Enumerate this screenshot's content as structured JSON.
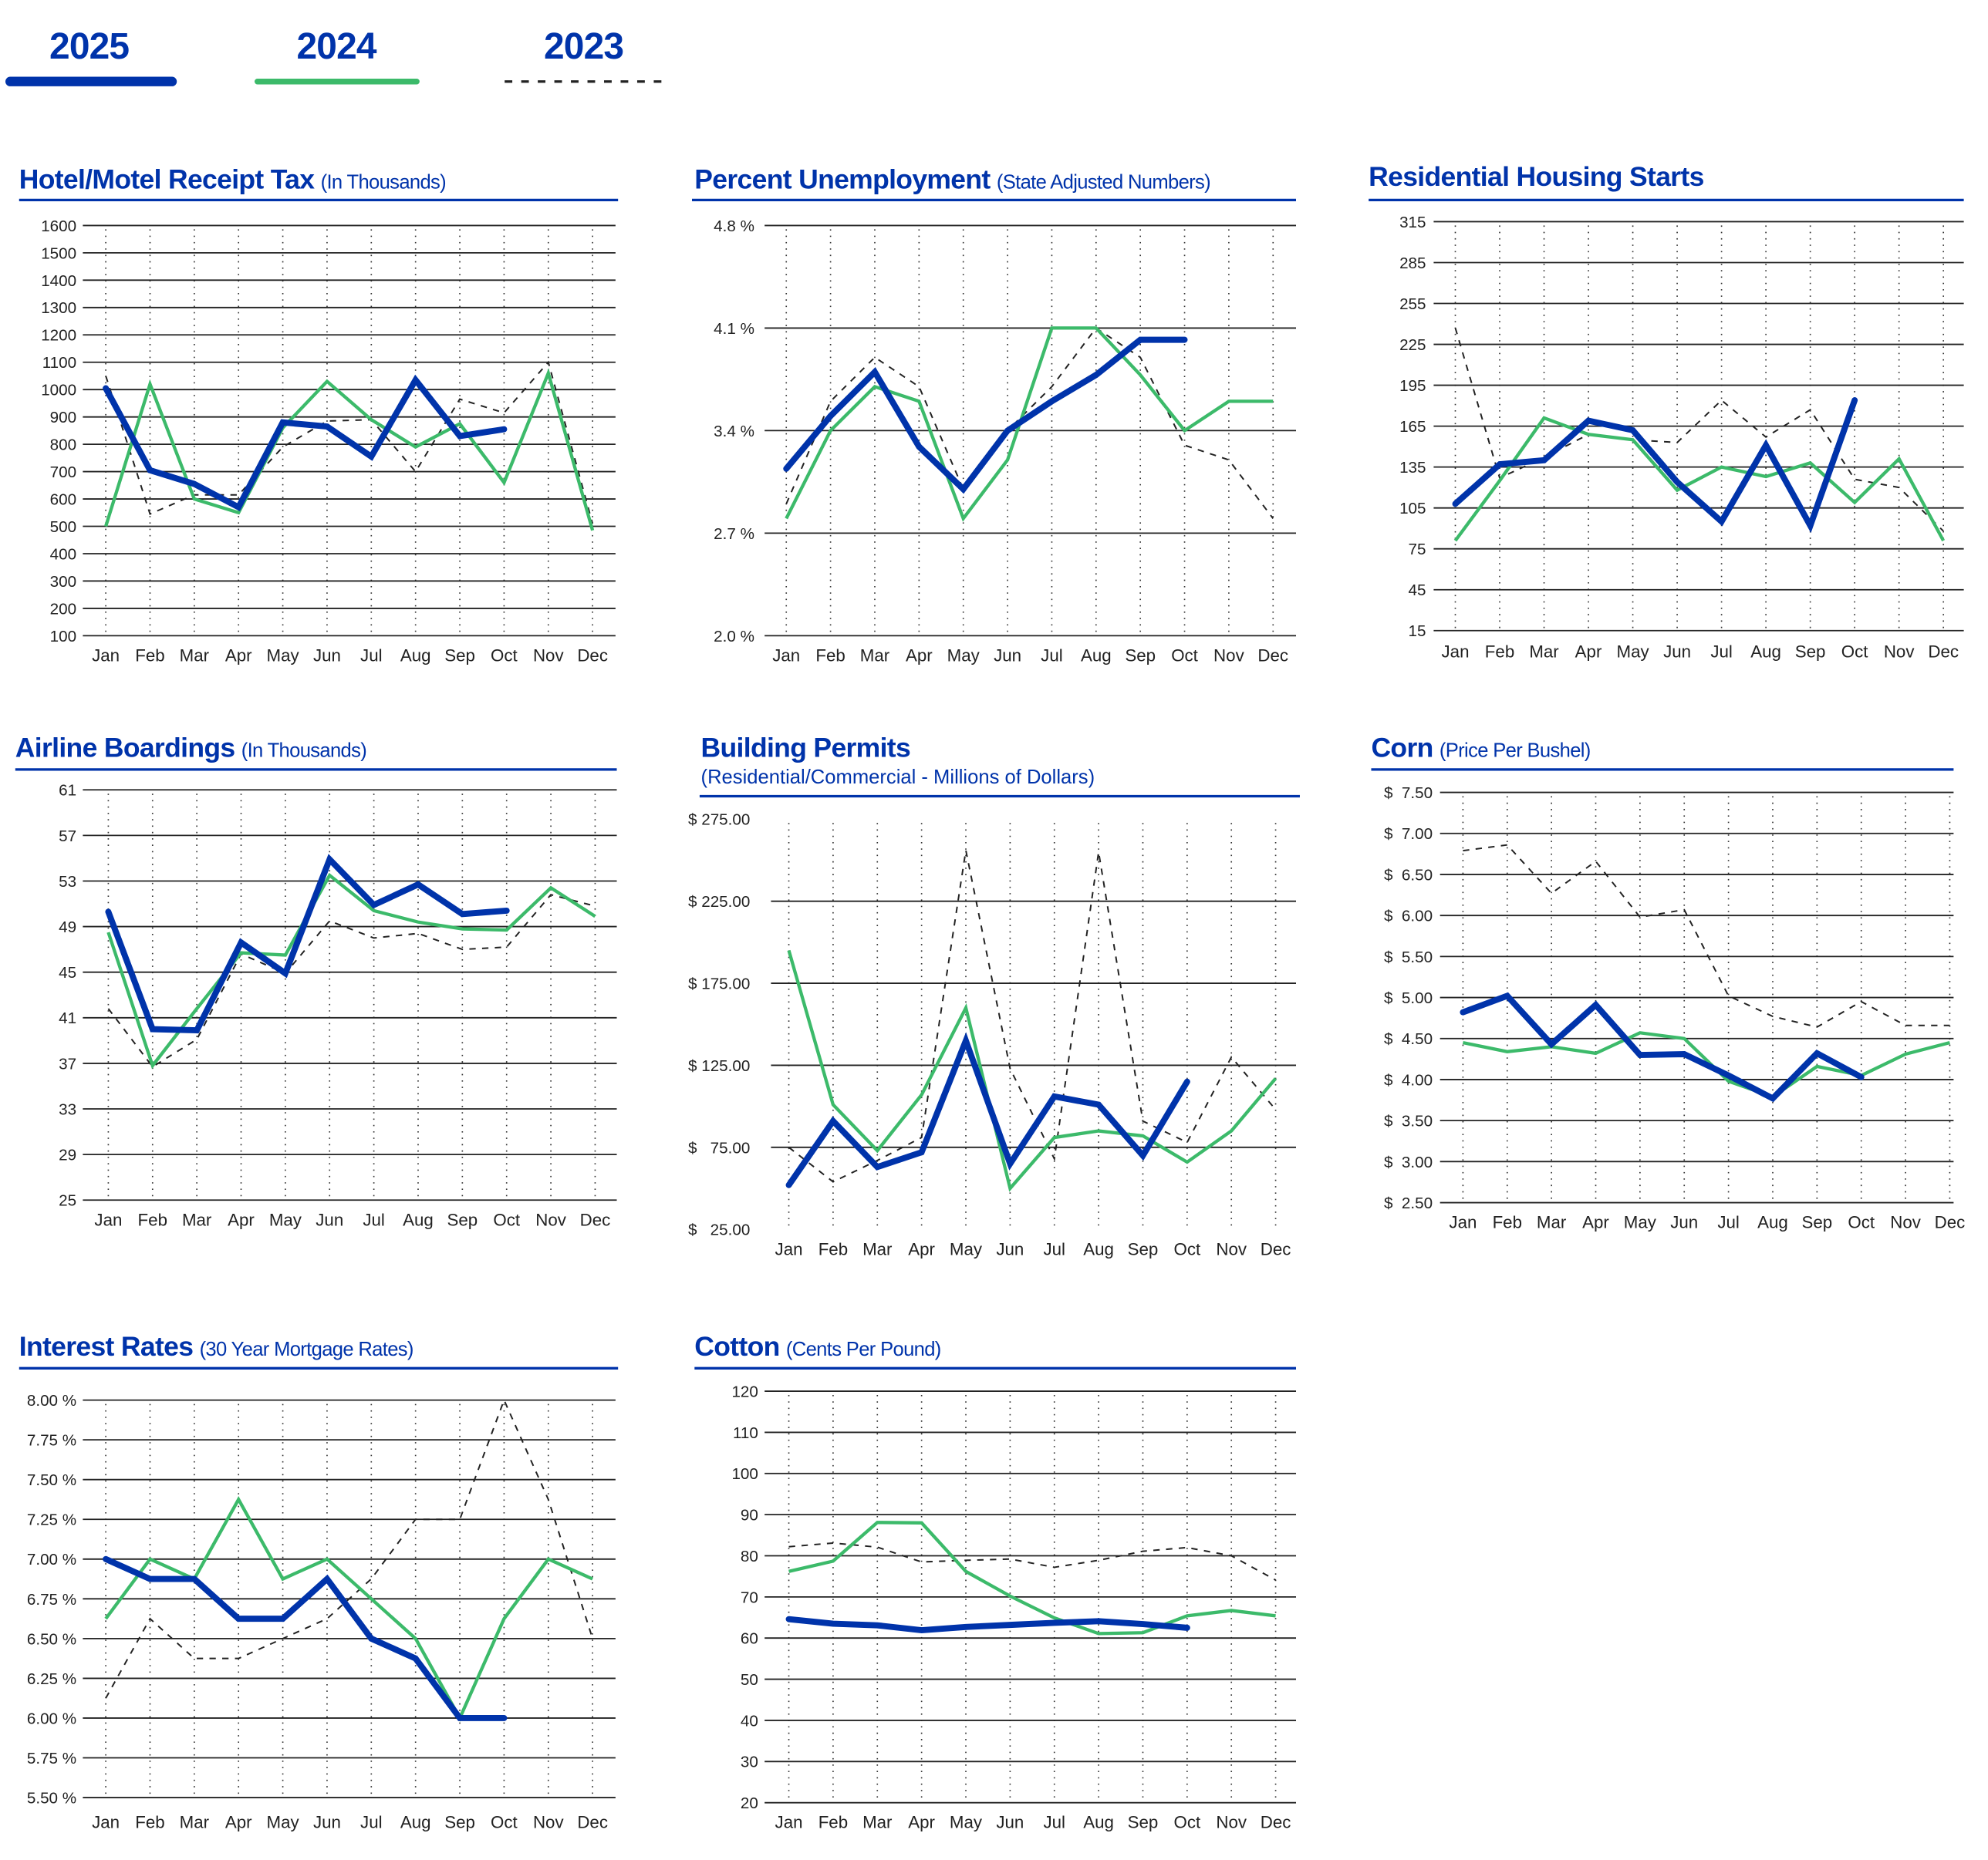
{
  "legend": [
    {
      "year": "2025",
      "color": "#0033aa",
      "style": "solid-thick"
    },
    {
      "year": "2024",
      "color": "#3cba6a",
      "style": "solid"
    },
    {
      "year": "2023",
      "color": "#222222",
      "style": "dashed"
    }
  ],
  "months": [
    "Jan",
    "Feb",
    "Mar",
    "Apr",
    "May",
    "Jun",
    "Jul",
    "Aug",
    "Sep",
    "Oct",
    "Nov",
    "Dec"
  ],
  "chart_data": [
    {
      "id": "hotel",
      "type": "line",
      "title": "Hotel/Motel Receipt Tax",
      "subtitle": "(In Thousands)",
      "ylim": [
        100,
        1600
      ],
      "yticks": [
        1600,
        1500,
        1400,
        1300,
        1200,
        1100,
        1000,
        900,
        800,
        700,
        600,
        500,
        400,
        300,
        200,
        100
      ],
      "ytick_labels": [
        "1600",
        "1500",
        "1400",
        "1300",
        "1200",
        "1100",
        "1000",
        "900",
        "800",
        "700",
        "600",
        "500",
        "400",
        "300",
        "200",
        "100"
      ],
      "gridlines": [
        1600,
        1500,
        1400,
        1300,
        1200,
        1100,
        1000,
        900,
        800,
        700,
        600,
        500,
        400,
        300,
        200,
        100
      ],
      "series": [
        {
          "name": "2025",
          "values": [
            1005,
            705,
            655,
            570,
            880,
            865,
            755,
            1035,
            830,
            855
          ]
        },
        {
          "name": "2024",
          "values": [
            500,
            1020,
            600,
            550,
            860,
            1030,
            890,
            790,
            875,
            660,
            1060,
            485
          ]
        },
        {
          "name": "2023",
          "values": [
            1050,
            545,
            615,
            615,
            790,
            885,
            890,
            700,
            965,
            915,
            1100,
            510
          ]
        }
      ]
    },
    {
      "id": "unemployment",
      "type": "line",
      "title": "Percent Unemployment",
      "subtitle": "(State Adjusted Numbers)",
      "ylim": [
        2.0,
        4.8
      ],
      "yticks": [
        4.8,
        4.1,
        3.4,
        2.7,
        2.0
      ],
      "ytick_labels": [
        "4.8 %",
        "4.1 %",
        "3.4 %",
        "2.7 %",
        "2.0 %"
      ],
      "gridlines": [
        4.8,
        4.1,
        3.4,
        2.7,
        2.0
      ],
      "series": [
        {
          "name": "2025",
          "values": [
            3.14,
            3.5,
            3.8,
            3.29,
            3.0,
            3.4,
            3.6,
            3.78,
            4.02,
            4.02
          ]
        },
        {
          "name": "2024",
          "values": [
            2.8,
            3.4,
            3.7,
            3.6,
            2.8,
            3.2,
            4.1,
            4.1,
            3.78,
            3.4,
            3.6,
            3.6
          ]
        },
        {
          "name": "2023",
          "values": [
            2.9,
            3.6,
            3.9,
            3.7,
            3.0,
            3.4,
            3.7,
            4.1,
            3.9,
            3.3,
            3.2,
            2.8
          ]
        }
      ]
    },
    {
      "id": "housing",
      "type": "line",
      "title": "Residential Housing Starts",
      "subtitle": "",
      "ylim": [
        15,
        315
      ],
      "yticks": [
        315,
        285,
        255,
        225,
        195,
        165,
        135,
        105,
        75,
        45,
        15
      ],
      "ytick_labels": [
        "315",
        "285",
        "255",
        "225",
        "195",
        "165",
        "135",
        "105",
        "75",
        "45",
        "15"
      ],
      "gridlines": [
        315,
        285,
        255,
        225,
        195,
        165,
        135,
        105,
        75,
        45,
        15
      ],
      "series": [
        {
          "name": "2025",
          "values": [
            108,
            137,
            140,
            169,
            162,
            124,
            95,
            151,
            92,
            184
          ]
        },
        {
          "name": "2024",
          "values": [
            81,
            125,
            171,
            159,
            155,
            118,
            135,
            128,
            138,
            109,
            141,
            81
          ]
        },
        {
          "name": "2023",
          "values": [
            237,
            127,
            142,
            159,
            155,
            153,
            184,
            157,
            177,
            126,
            120,
            88
          ]
        }
      ]
    },
    {
      "id": "airline",
      "type": "line",
      "title": "Airline Boardings",
      "subtitle": "(In Thousands)",
      "ylim": [
        25,
        61
      ],
      "yticks": [
        61,
        57,
        53,
        49,
        45,
        41,
        37,
        33,
        29,
        25
      ],
      "ytick_labels": [
        "61",
        "57",
        "53",
        "49",
        "45",
        "41",
        "37",
        "33",
        "29",
        "25"
      ],
      "gridlines": [
        61,
        57,
        53,
        49,
        45,
        41,
        37,
        33,
        29,
        25
      ],
      "series": [
        {
          "name": "2025",
          "values": [
            50.3,
            40.0,
            39.9,
            47.6,
            44.9,
            54.9,
            50.9,
            52.7,
            50.1,
            50.4
          ]
        },
        {
          "name": "2024",
          "values": [
            48.5,
            36.8,
            41.8,
            46.7,
            46.5,
            53.5,
            50.4,
            49.4,
            48.8,
            48.7,
            52.4,
            49.9
          ]
        },
        {
          "name": "2023",
          "values": [
            41.8,
            36.7,
            39.1,
            46.6,
            44.9,
            49.5,
            48.0,
            48.4,
            47.0,
            47.2,
            51.8,
            50.8
          ]
        }
      ]
    },
    {
      "id": "permits",
      "type": "line",
      "title": "Building Permits",
      "subtitle": "(Residential/Commercial - Millions of Dollars)",
      "ylim": [
        25,
        275
      ],
      "yticks": [
        275,
        225,
        175,
        125,
        75,
        25
      ],
      "ytick_labels": [
        "$ 275.00",
        "$ 225.00",
        "$ 175.00",
        "$ 125.00",
        "$   75.00",
        "$   25.00"
      ],
      "gridlines": [
        225,
        175,
        125,
        75
      ],
      "series": [
        {
          "name": "2025",
          "values": [
            52,
            91,
            63,
            72,
            140,
            65,
            106,
            101,
            70,
            115
          ]
        },
        {
          "name": "2024",
          "values": [
            195,
            101,
            73,
            107,
            160,
            50,
            81,
            85,
            82,
            66,
            85,
            117
          ]
        },
        {
          "name": "2023",
          "values": [
            75,
            54,
            67,
            81,
            256,
            123,
            68,
            255,
            91,
            78,
            130,
            98
          ]
        }
      ]
    },
    {
      "id": "corn",
      "type": "line",
      "title": "Corn",
      "subtitle": "(Price Per Bushel)",
      "ylim": [
        2.5,
        7.5
      ],
      "yticks": [
        7.5,
        7.0,
        6.5,
        6.0,
        5.5,
        5.0,
        4.5,
        4.0,
        3.5,
        3.0,
        2.5
      ],
      "ytick_labels": [
        "$  7.50",
        "$  7.00",
        "$  6.50",
        "$  6.00",
        "$  5.50",
        "$  5.00",
        "$  4.50",
        "$  4.00",
        "$  3.50",
        "$  3.00",
        "$  2.50"
      ],
      "gridlines": [
        7.5,
        7.0,
        6.5,
        6.0,
        5.5,
        5.0,
        4.5,
        4.0,
        3.5,
        3.0,
        2.5
      ],
      "series": [
        {
          "name": "2025",
          "values": [
            4.82,
            5.02,
            4.43,
            4.91,
            4.3,
            4.31,
            4.05,
            3.77,
            4.32,
            4.03
          ]
        },
        {
          "name": "2024",
          "values": [
            4.45,
            4.34,
            4.4,
            4.32,
            4.57,
            4.5,
            3.98,
            3.79,
            4.16,
            4.05,
            4.31,
            4.45
          ]
        },
        {
          "name": "2023",
          "values": [
            6.79,
            6.86,
            6.27,
            6.66,
            5.98,
            6.07,
            5.02,
            4.77,
            4.64,
            4.95,
            4.66,
            4.66
          ]
        }
      ]
    },
    {
      "id": "interest",
      "type": "line",
      "title": "Interest Rates",
      "subtitle": "(30 Year Mortgage Rates)",
      "ylim": [
        5.5,
        8.0
      ],
      "yticks": [
        8.0,
        7.75,
        7.5,
        7.25,
        7.0,
        6.75,
        6.5,
        6.25,
        6.0,
        5.75,
        5.5
      ],
      "ytick_labels": [
        "8.00 %",
        "7.75 %",
        "7.50 %",
        "7.25 %",
        "7.00 %",
        "6.75 %",
        "6.50 %",
        "6.25 %",
        "6.00 %",
        "5.75 %",
        "5.50 %"
      ],
      "gridlines": [
        8.0,
        7.75,
        7.5,
        7.25,
        7.0,
        6.75,
        6.5,
        6.25,
        6.0,
        5.75,
        5.5
      ],
      "series": [
        {
          "name": "2025",
          "values": [
            7.0,
            6.875,
            6.875,
            6.625,
            6.625,
            6.875,
            6.5,
            6.375,
            6.0,
            6.0
          ]
        },
        {
          "name": "2024",
          "values": [
            6.625,
            7.0,
            6.875,
            7.375,
            6.875,
            7.0,
            6.75,
            6.5,
            6.0,
            6.625,
            7.0,
            6.875
          ]
        },
        {
          "name": "2023",
          "values": [
            6.125,
            6.625,
            6.375,
            6.375,
            6.5,
            6.625,
            6.875,
            7.25,
            7.25,
            8.0,
            7.375,
            6.5
          ]
        }
      ]
    },
    {
      "id": "cotton",
      "type": "line",
      "title": "Cotton",
      "subtitle": "(Cents Per Pound)",
      "ylim": [
        20,
        120
      ],
      "yticks": [
        120,
        110,
        100,
        90,
        80,
        70,
        60,
        50,
        40,
        30,
        20
      ],
      "ytick_labels": [
        "120",
        "110",
        "100",
        "90",
        "80",
        "70",
        "60",
        "50",
        "40",
        "30",
        "20"
      ],
      "gridlines": [
        120,
        110,
        100,
        90,
        80,
        70,
        60,
        50,
        40,
        30,
        20
      ],
      "series": [
        {
          "name": "2025",
          "values": [
            64.6,
            63.5,
            63.1,
            61.9,
            62.7,
            63.2,
            63.7,
            64.1,
            63.4,
            62.5
          ]
        },
        {
          "name": "2024",
          "values": [
            76.2,
            78.7,
            88.1,
            88.0,
            76.2,
            70.2,
            64.9,
            61.1,
            61.3,
            65.4,
            66.7,
            65.4
          ]
        },
        {
          "name": "2023",
          "values": [
            82.2,
            83.1,
            82.1,
            78.5,
            78.9,
            79.2,
            77.2,
            78.9,
            81.1,
            82.0,
            80.0,
            74.1
          ]
        }
      ]
    }
  ]
}
